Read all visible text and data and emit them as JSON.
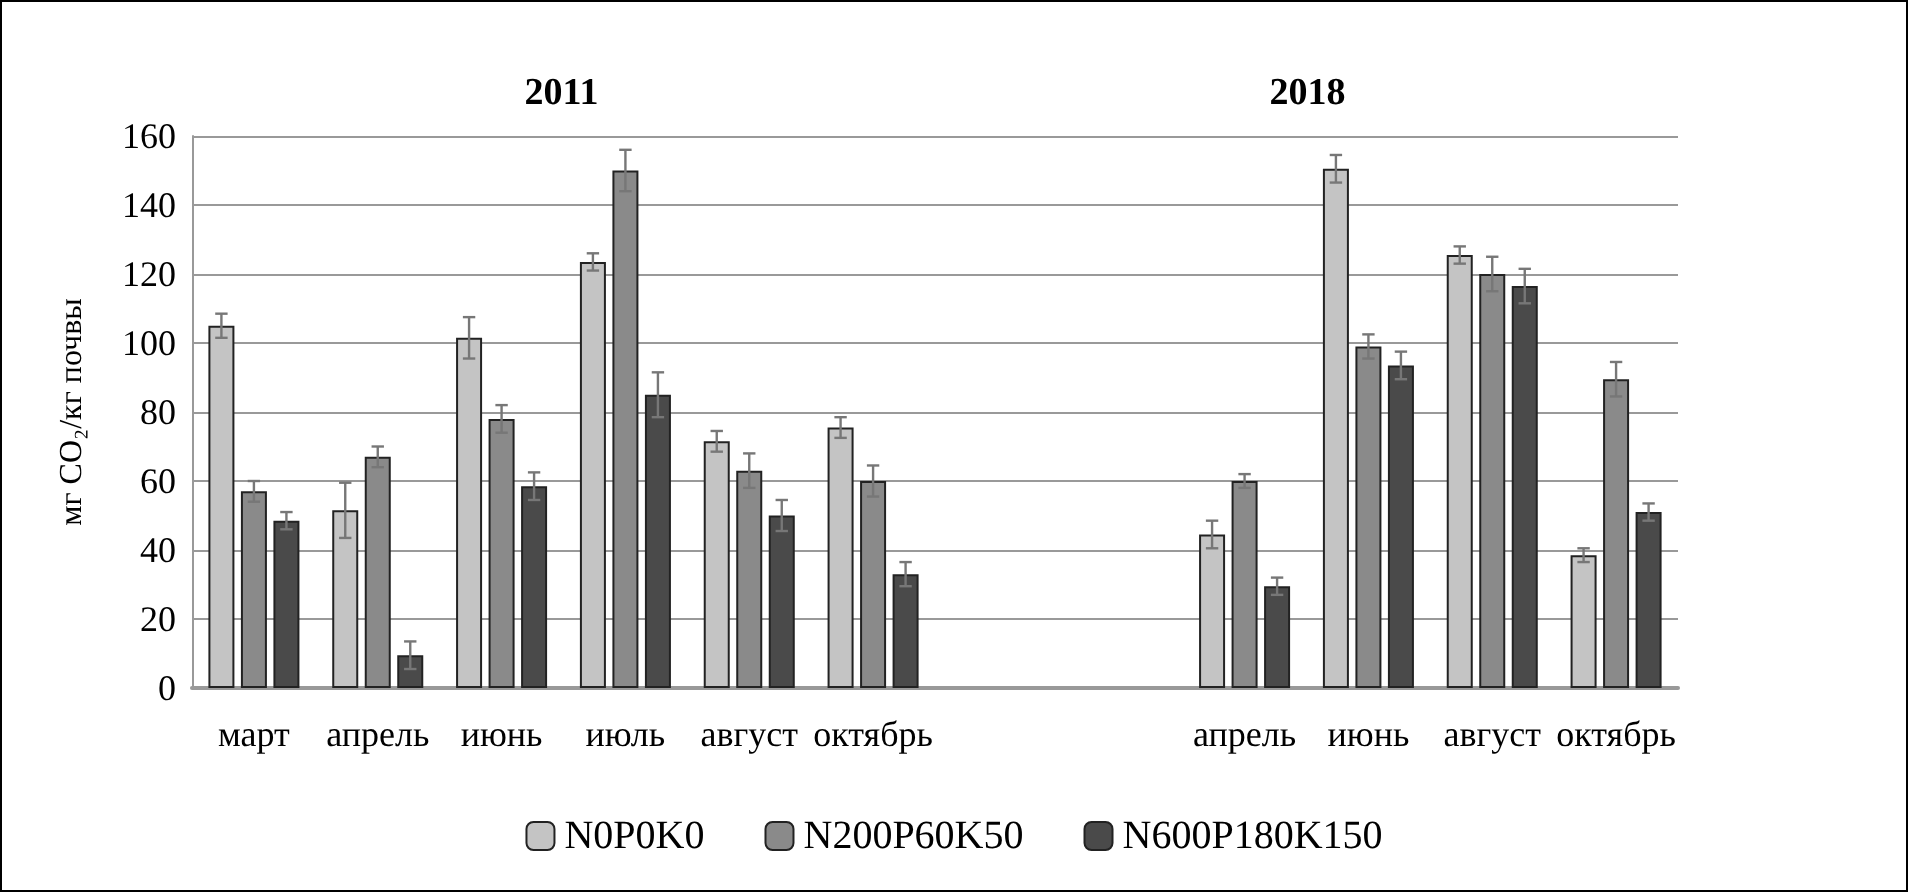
{
  "chart_data": {
    "type": "bar",
    "categories": [
      "март",
      "апрель",
      "июнь",
      "июль",
      "август",
      "октябрь",
      null,
      null,
      "апрель",
      "июнь",
      "август",
      "октябрь"
    ],
    "series": [
      {
        "name": "N0P0K0",
        "color": "#c4c4c4",
        "values": [
          105,
          51.5,
          101.5,
          123.5,
          71.5,
          75.5,
          null,
          null,
          44.5,
          150.5,
          125.5,
          38.5
        ],
        "errors": [
          3.5,
          8,
          6,
          2.5,
          3,
          3,
          null,
          null,
          4,
          4,
          2.5,
          2
        ]
      },
      {
        "name": "N200P60K50",
        "color": "#8a8a8a",
        "values": [
          57,
          67,
          78,
          150,
          63,
          60,
          null,
          null,
          60,
          99,
          120,
          89.5
        ],
        "errors": [
          3,
          3,
          4,
          6,
          5,
          4.5,
          null,
          null,
          2,
          3.5,
          5,
          5
        ]
      },
      {
        "name": "N600P180K150",
        "color": "#4a4a4a",
        "values": [
          48.5,
          9.5,
          58.5,
          85,
          50,
          33,
          null,
          null,
          29.5,
          93.5,
          116.5,
          51
        ],
        "errors": [
          2.5,
          4,
          4,
          6.5,
          4.5,
          3.5,
          null,
          null,
          2.5,
          4,
          5,
          2.5
        ]
      }
    ],
    "ylabel": "мг CO₂/кг почвы",
    "annotations": [
      "2011",
      "2018"
    ],
    "ylim": [
      0,
      160
    ],
    "yticks": [
      0,
      20,
      40,
      60,
      80,
      100,
      120,
      140,
      160
    ],
    "grid": "y",
    "legend": "bottom"
  }
}
